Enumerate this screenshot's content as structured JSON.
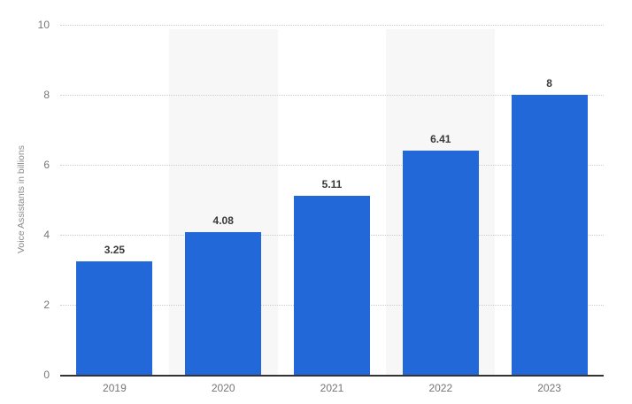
{
  "chart_data": {
    "type": "bar",
    "title": "",
    "xlabel": "",
    "ylabel": "Voice Assistants in billions",
    "categories": [
      "2019",
      "2020",
      "2021",
      "2022",
      "2023"
    ],
    "values": [
      3.25,
      4.08,
      5.11,
      6.41,
      8
    ],
    "value_labels": [
      "3.25",
      "4.08",
      "5.11",
      "6.41",
      "8"
    ],
    "ylim": [
      0,
      10
    ],
    "yticks": [
      0,
      2,
      4,
      6,
      8,
      10
    ],
    "grid": "horizontal dotted gridlines at each y tick",
    "legend": "none",
    "band_slots": [
      1,
      3
    ],
    "colors": {
      "bar": "#2368d9",
      "band": "#f7f7f7",
      "gridline": "#cccccc",
      "axis_line": "#333333",
      "tick_text": "#767676",
      "value_text": "#3a3a3a",
      "axis_title_text": "#8a8a8a",
      "background": "#ffffff"
    }
  }
}
